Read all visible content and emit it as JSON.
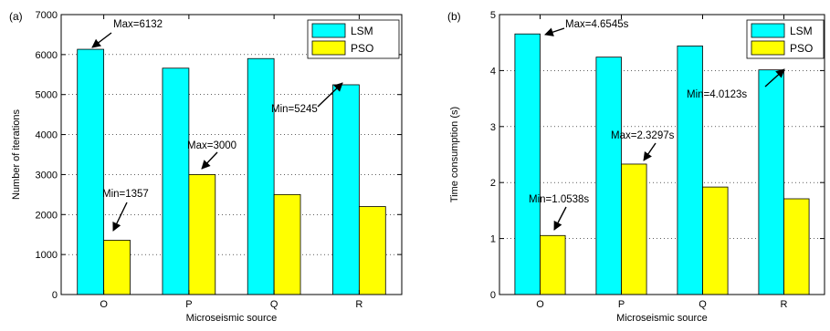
{
  "chart_data": [
    {
      "type": "bar",
      "panel_label": "(a)",
      "categories": [
        "O",
        "P",
        "Q",
        "R"
      ],
      "series": [
        {
          "name": "LSM",
          "values": [
            6132,
            5660,
            5900,
            5245
          ],
          "color": "#00ffff"
        },
        {
          "name": "PSO",
          "values": [
            1357,
            3000,
            2500,
            2200
          ],
          "color": "#ffff00"
        }
      ],
      "xlabel": "Microseismic source",
      "ylabel": "Number of iterations",
      "ylim": [
        0,
        7000
      ],
      "yticks": [
        "0",
        "1000",
        "2000",
        "3000",
        "4000",
        "5000",
        "6000",
        "7000"
      ],
      "grid": "y-dotted",
      "legend_position": "top-right",
      "annotations": [
        {
          "text": "Max=6132",
          "series": 0,
          "category": 0
        },
        {
          "text": "Min=1357",
          "series": 1,
          "category": 0
        },
        {
          "text": "Max=3000",
          "series": 1,
          "category": 1
        },
        {
          "text": "Min=5245",
          "series": 0,
          "category": 3
        }
      ]
    },
    {
      "type": "bar",
      "panel_label": "(b)",
      "categories": [
        "O",
        "P",
        "Q",
        "R"
      ],
      "series": [
        {
          "name": "LSM",
          "values": [
            4.6545,
            4.24,
            4.44,
            4.0123
          ],
          "color": "#00ffff"
        },
        {
          "name": "PSO",
          "values": [
            1.0538,
            2.3297,
            1.92,
            1.71
          ],
          "color": "#ffff00"
        }
      ],
      "xlabel": "Microseismic source",
      "ylabel": "Time consumption (s)",
      "ylim": [
        0,
        5
      ],
      "yticks": [
        "0",
        "1",
        "2",
        "3",
        "4",
        "5"
      ],
      "grid": "y-dotted",
      "legend_position": "top-right",
      "annotations": [
        {
          "text": "Max=4.6545s",
          "series": 0,
          "category": 0
        },
        {
          "text": "Min=1.0538s",
          "series": 1,
          "category": 0
        },
        {
          "text": "Max=2.3297s",
          "series": 1,
          "category": 1
        },
        {
          "text": "Min=4.0123s",
          "series": 0,
          "category": 3
        }
      ]
    }
  ]
}
